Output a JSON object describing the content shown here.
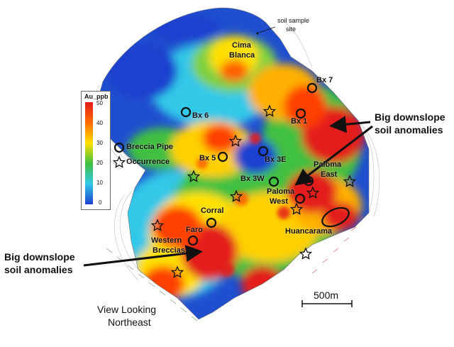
{
  "legend": {
    "title": "Au_ppb",
    "ticks": [
      "50",
      "40",
      "30",
      "20",
      "10",
      "0"
    ],
    "breccia_label": "Breccia Pipe",
    "occurrence_label": "Occurrence"
  },
  "labels": {
    "soil_sample": "soil sample",
    "soil_sample_site": "site",
    "cima_blanca_1": "Cima",
    "cima_blanca_2": "Blanca",
    "bx7": "Bx 7",
    "bx6": "Bx 6",
    "bx1": "Bx 1",
    "bx5": "Bx 5",
    "bx3e": "Bx 3E",
    "bx3w": "Bx 3W",
    "paloma_east_1": "Paloma",
    "paloma_east_2": "East",
    "paloma_west_1": "Paloma",
    "paloma_west_2": "West",
    "corral": "Corral",
    "faro": "Faro",
    "western_breccias_1": "Western",
    "western_breccias_2": "Breccias",
    "huancarama": "Huancarama"
  },
  "annotations": {
    "anomaly_right_1": "Big downslope",
    "anomaly_right_2": "soil anomalies",
    "anomaly_left_1": "Big downslope",
    "anomaly_left_2": "soil anomalies",
    "scale": "500m",
    "view_1": "View Looking",
    "view_2": "Northeast"
  },
  "colors": {
    "high": "#e31a1c",
    "mid_high": "#ff8c00",
    "mid": "#ffe000",
    "mid_low": "#40c040",
    "low_mid": "#30c8e8",
    "low": "#1f4fcf"
  }
}
